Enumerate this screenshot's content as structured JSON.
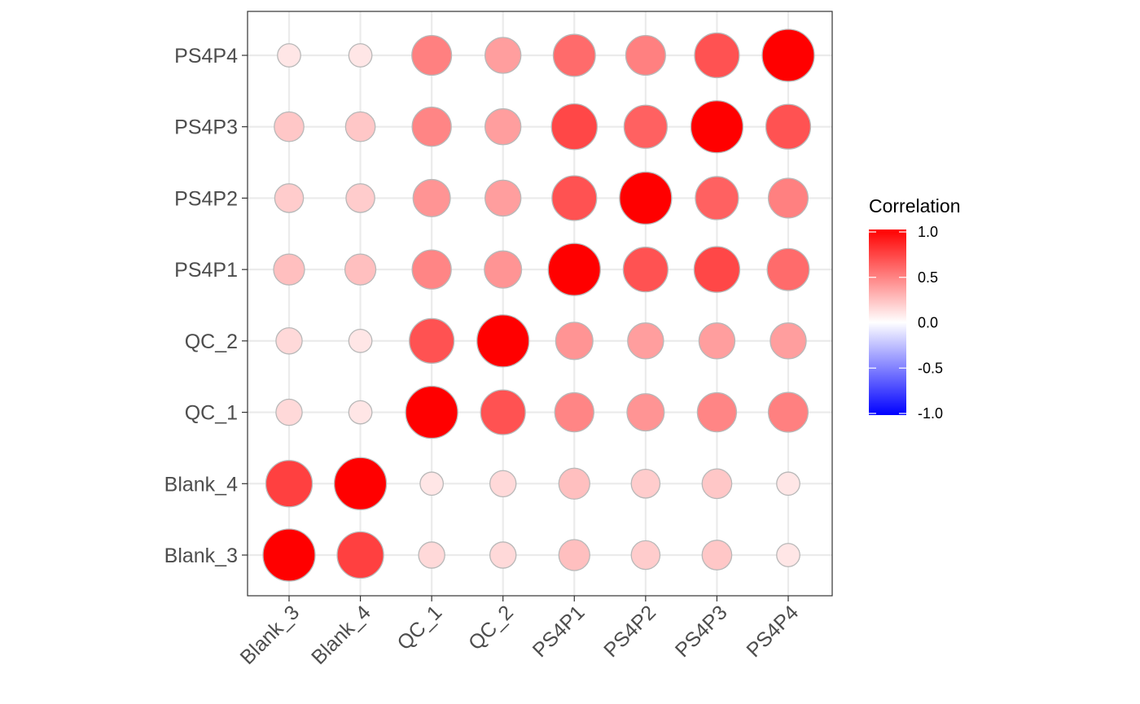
{
  "chart_data": {
    "type": "heatmap",
    "subtype": "correlation-bubble",
    "title": "",
    "xlabel": "",
    "ylabel": "",
    "x_categories": [
      "Blank_3",
      "Blank_4",
      "QC_1",
      "QC_2",
      "PS4P1",
      "PS4P2",
      "PS4P3",
      "PS4P4"
    ],
    "y_categories": [
      "Blank_3",
      "Blank_4",
      "QC_1",
      "QC_2",
      "PS4P1",
      "PS4P2",
      "PS4P3",
      "PS4P4"
    ],
    "values": [
      [
        1.0,
        0.75,
        0.15,
        0.15,
        0.25,
        0.2,
        0.22,
        0.1
      ],
      [
        0.75,
        1.0,
        0.1,
        0.15,
        0.25,
        0.2,
        0.22,
        0.1
      ],
      [
        0.15,
        0.1,
        1.0,
        0.68,
        0.48,
        0.42,
        0.48,
        0.5
      ],
      [
        0.15,
        0.1,
        0.68,
        1.0,
        0.42,
        0.38,
        0.38,
        0.38
      ],
      [
        0.25,
        0.25,
        0.48,
        0.42,
        1.0,
        0.68,
        0.72,
        0.58
      ],
      [
        0.2,
        0.2,
        0.42,
        0.38,
        0.68,
        1.0,
        0.62,
        0.5
      ],
      [
        0.22,
        0.22,
        0.48,
        0.38,
        0.72,
        0.62,
        1.0,
        0.68
      ],
      [
        0.1,
        0.1,
        0.5,
        0.38,
        0.58,
        0.5,
        0.68,
        1.0
      ]
    ],
    "legend": {
      "title": "Correlation",
      "ticks": [
        "1.0",
        "0.5",
        "0.0",
        "-0.5",
        "-1.0"
      ],
      "range": [
        -1,
        1
      ],
      "colors": {
        "low": "#0000FF",
        "mid": "#FFFFFF",
        "high": "#FF0000"
      },
      "position": "right"
    },
    "grid": true,
    "colors": {
      "outline": "#b8b8b8",
      "gridline": "#ebebeb",
      "panel_border": "#333333"
    }
  }
}
